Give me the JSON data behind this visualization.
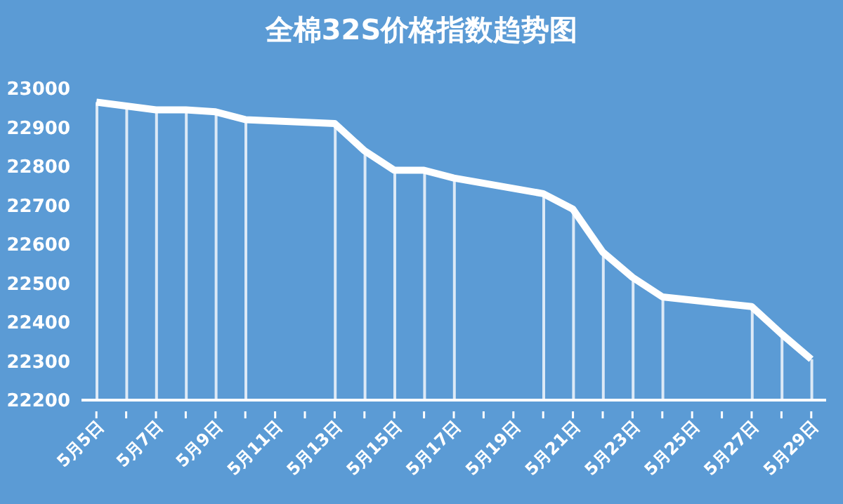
{
  "chart_data": {
    "type": "line",
    "title": "全棉32S价格指数趋势图",
    "categories": [
      "5月5日",
      null,
      "5月7日",
      null,
      "5月9日",
      null,
      "5月11日",
      null,
      "5月13日",
      null,
      "5月15日",
      null,
      "5月17日",
      null,
      "5月19日",
      null,
      "5月21日",
      null,
      "5月23日",
      null,
      "5月25日",
      null,
      "5月27日",
      null,
      "5月29日"
    ],
    "series": [
      {
        "type": "bar",
        "color": "#dce9f6",
        "values": [
          22965,
          22955,
          22945,
          22945,
          22940,
          22920,
          null,
          null,
          22910,
          22840,
          22790,
          22790,
          22770,
          null,
          null,
          22730,
          22690,
          22580,
          22515,
          22465,
          null,
          null,
          22440,
          22370,
          22305
        ]
      },
      {
        "color": "#ffffff",
        "values": [
          22965,
          22955,
          22945,
          22945,
          22940,
          22920,
          null,
          null,
          22910,
          22840,
          22790,
          22790,
          22770,
          null,
          null,
          22730,
          22690,
          22580,
          22515,
          22465,
          null,
          null,
          22440,
          22370,
          22305
        ]
      }
    ],
    "ylim": [
      22200,
      23000
    ],
    "yticks": [
      22200,
      22300,
      22400,
      22500,
      22600,
      22700,
      22800,
      22900,
      23000
    ],
    "legend": false
  }
}
